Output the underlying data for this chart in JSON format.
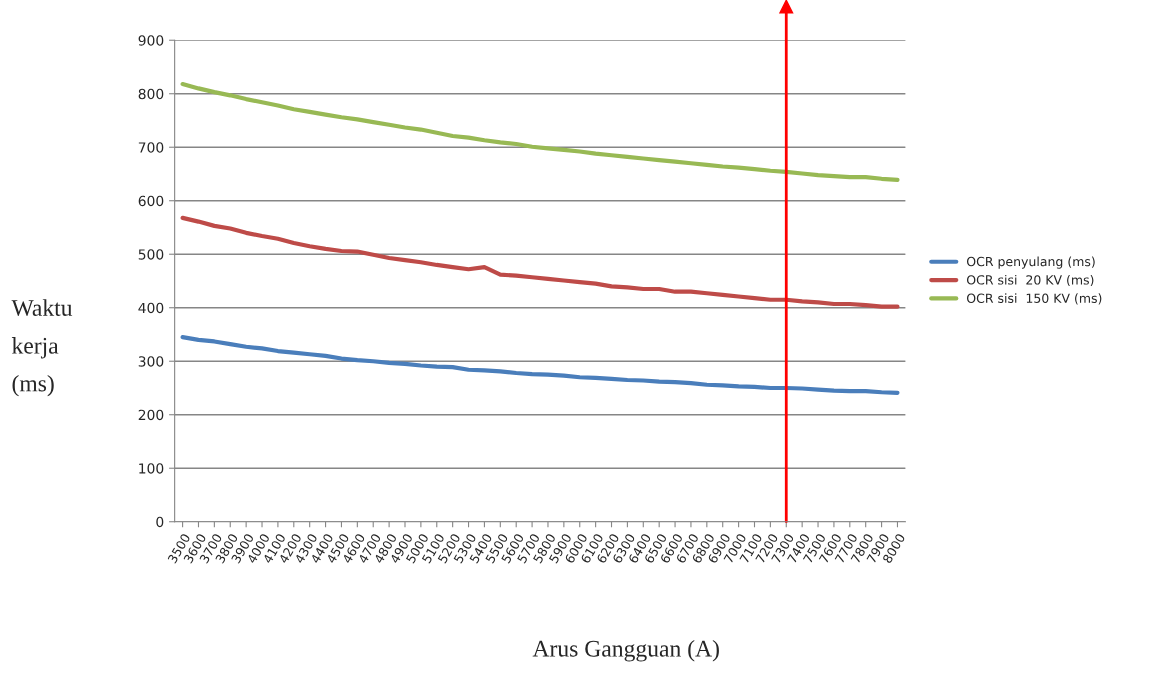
{
  "chart_data": {
    "type": "line",
    "xlabel": "Arus Gangguan (A)",
    "ylabel": "Waktu\nkerja\n(ms)",
    "categories": [
      "3500",
      "3600",
      "3700",
      "3800",
      "3900",
      "4000",
      "4100",
      "4200",
      "4300",
      "4400",
      "4500",
      "4600",
      "4700",
      "4800",
      "4900",
      "5000",
      "5100",
      "5200",
      "5300",
      "5400",
      "5500",
      "5600",
      "5700",
      "5800",
      "5900",
      "6000",
      "6100",
      "6200",
      "6300",
      "6400",
      "6500",
      "6600",
      "6700",
      "6800",
      "6900",
      "7000",
      "7100",
      "7200",
      "7300",
      "7400",
      "7500",
      "7600",
      "7700",
      "7800",
      "7900",
      "8000"
    ],
    "series": [
      {
        "name": "OCR penyulang (ms)",
        "color": "#4a7ebb",
        "values": [
          345,
          340,
          337,
          332,
          327,
          324,
          319,
          316,
          313,
          310,
          305,
          302,
          300,
          297,
          295,
          292,
          290,
          289,
          284,
          283,
          281,
          278,
          276,
          275,
          273,
          270,
          269,
          267,
          265,
          264,
          262,
          261,
          259,
          256,
          255,
          253,
          252,
          250,
          250,
          249,
          247,
          245,
          244,
          244,
          242,
          241
        ]
      },
      {
        "name": "OCR sisi  20 KV (ms)",
        "color": "#be4b48",
        "values": [
          568,
          561,
          553,
          548,
          540,
          534,
          529,
          521,
          515,
          510,
          506,
          505,
          499,
          493,
          489,
          485,
          480,
          476,
          472,
          476,
          462,
          460,
          457,
          454,
          451,
          448,
          445,
          440,
          438,
          435,
          435,
          430,
          430,
          427,
          424,
          421,
          418,
          415,
          415,
          412,
          410,
          407,
          407,
          405,
          402,
          402
        ]
      },
      {
        "name": "OCR sisi  150 KV (ms)",
        "color": "#98b954",
        "values": [
          818,
          810,
          803,
          797,
          790,
          784,
          778,
          771,
          766,
          761,
          756,
          752,
          747,
          742,
          737,
          733,
          727,
          721,
          718,
          713,
          709,
          706,
          701,
          698,
          695,
          692,
          688,
          685,
          682,
          679,
          676,
          673,
          670,
          667,
          664,
          662,
          659,
          656,
          654,
          651,
          648,
          646,
          644,
          644,
          641,
          639
        ]
      }
    ],
    "ylim": [
      0,
      900
    ],
    "yticks": [
      0,
      100,
      200,
      300,
      400,
      500,
      600,
      700,
      800,
      900
    ],
    "grid": "y",
    "legend": "right",
    "ref_lines": [
      {
        "axis": "x",
        "value": "7300",
        "color": "#ff0000"
      }
    ]
  }
}
